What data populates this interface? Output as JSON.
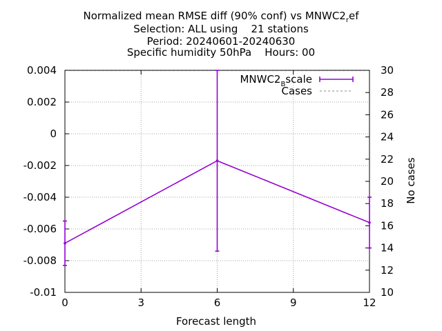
{
  "title": {
    "line1_prefix": "Normalized mean RMSE diff (90% conf) vs MNWC2",
    "line1_sub": "r",
    "line1_suffix": "ef",
    "line2": "Selection: ALL using    21 stations",
    "line3": "Period: 20240601-20240630",
    "line4": "Specific humidity 50hPa    Hours: 00"
  },
  "chart_data": {
    "type": "line",
    "xlabel": "Forecast length",
    "ylabel_right": "No cases",
    "xlim": [
      0,
      12
    ],
    "ylim": [
      -0.01,
      0.004
    ],
    "y2lim": [
      10,
      30
    ],
    "x_ticks": [
      "0",
      "3",
      "6",
      "9",
      "12"
    ],
    "y_ticks": [
      "0.004",
      "0.002",
      "0",
      "-0.002",
      "-0.004",
      "-0.006",
      "-0.008",
      "-0.01"
    ],
    "y2_ticks": [
      "30",
      "28",
      "26",
      "24",
      "22",
      "20",
      "18",
      "16",
      "14",
      "12",
      "10"
    ],
    "grid": true,
    "legend_position": "top-right",
    "series": [
      {
        "name_prefix": "MNWC2",
        "name_sub": "B",
        "name_suffix": "scale",
        "color": "#9400d3",
        "x": [
          0,
          6,
          12
        ],
        "y": [
          -0.0069,
          -0.0017,
          -0.0056
        ],
        "err_low": [
          -0.0083,
          -0.0074,
          -0.0072
        ],
        "err_high": [
          -0.0055,
          0.004,
          -0.004
        ]
      },
      {
        "name": "Cases",
        "color": "#a0a0a0",
        "axis": "y2",
        "x": [
          0,
          6,
          12
        ],
        "y": [
          30,
          30,
          30
        ]
      }
    ]
  }
}
